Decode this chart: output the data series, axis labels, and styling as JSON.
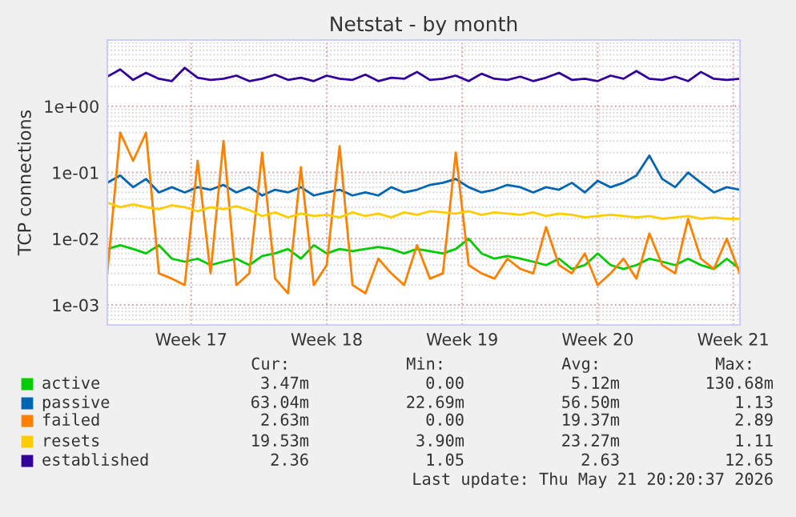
{
  "chart_data": {
    "type": "line",
    "title": "Netstat - by month",
    "ylabel": "TCP connections",
    "x": [
      "2026-04-19T04:00",
      "2026-04-19T20:00",
      "2026-04-20T12:00",
      "2026-04-21T04:00",
      "2026-04-21T20:00",
      "2026-04-22T12:00",
      "2026-04-23T04:00",
      "2026-04-23T20:00",
      "2026-04-24T12:00",
      "2026-04-25T04:00",
      "2026-04-25T20:00",
      "2026-04-26T12:00",
      "2026-04-27T04:00",
      "2026-04-27T20:00",
      "2026-04-28T12:00",
      "2026-04-29T04:00",
      "2026-04-29T20:00",
      "2026-04-30T12:00",
      "2026-05-01T04:00",
      "2026-05-01T20:00",
      "2026-05-02T12:00",
      "2026-05-03T04:00",
      "2026-05-03T20:00",
      "2026-05-04T12:00",
      "2026-05-05T04:00",
      "2026-05-05T20:00",
      "2026-05-06T12:00",
      "2026-05-07T04:00",
      "2026-05-07T20:00",
      "2026-05-08T12:00",
      "2026-05-09T04:00",
      "2026-05-09T20:00",
      "2026-05-10T12:00",
      "2026-05-11T04:00",
      "2026-05-11T20:00",
      "2026-05-12T12:00",
      "2026-05-13T04:00",
      "2026-05-13T20:00",
      "2026-05-14T12:00",
      "2026-05-15T04:00",
      "2026-05-15T20:00",
      "2026-05-16T12:00",
      "2026-05-17T04:00",
      "2026-05-17T20:00",
      "2026-05-18T12:00",
      "2026-05-19T04:00",
      "2026-05-19T20:00",
      "2026-05-20T12:00",
      "2026-05-21T04:00",
      "2026-05-21T20:00"
    ],
    "series": [
      {
        "name": "active",
        "color": "#00cc00",
        "values": [
          0.007,
          0.008,
          0.007,
          0.006,
          0.008,
          0.005,
          0.0045,
          0.005,
          0.004,
          0.0045,
          0.005,
          0.004,
          0.0055,
          0.006,
          0.007,
          0.005,
          0.008,
          0.006,
          0.007,
          0.0065,
          0.007,
          0.0075,
          0.007,
          0.006,
          0.007,
          0.0065,
          0.006,
          0.007,
          0.01,
          0.006,
          0.005,
          0.0055,
          0.005,
          0.0045,
          0.004,
          0.005,
          0.0035,
          0.004,
          0.006,
          0.004,
          0.0035,
          0.004,
          0.005,
          0.0045,
          0.004,
          0.005,
          0.004,
          0.0035,
          0.005,
          0.0035
        ]
      },
      {
        "name": "passive",
        "color": "#0066b3",
        "values": [
          0.07,
          0.09,
          0.06,
          0.08,
          0.05,
          0.06,
          0.05,
          0.06,
          0.055,
          0.065,
          0.05,
          0.06,
          0.045,
          0.055,
          0.05,
          0.06,
          0.045,
          0.05,
          0.055,
          0.045,
          0.05,
          0.045,
          0.06,
          0.05,
          0.055,
          0.065,
          0.07,
          0.08,
          0.06,
          0.05,
          0.055,
          0.065,
          0.06,
          0.05,
          0.06,
          0.055,
          0.07,
          0.05,
          0.075,
          0.06,
          0.07,
          0.09,
          0.18,
          0.08,
          0.06,
          0.1,
          0.07,
          0.05,
          0.06,
          0.055
        ]
      },
      {
        "name": "failed",
        "color": "#ff8000",
        "values": [
          0.003,
          0.4,
          0.15,
          0.4,
          0.003,
          0.0025,
          0.002,
          0.15,
          0.003,
          0.3,
          0.002,
          0.003,
          0.2,
          0.0025,
          0.0015,
          0.12,
          0.002,
          0.004,
          0.25,
          0.002,
          0.0015,
          0.005,
          0.003,
          0.002,
          0.008,
          0.0025,
          0.003,
          0.2,
          0.004,
          0.003,
          0.0025,
          0.005,
          0.0035,
          0.003,
          0.015,
          0.004,
          0.003,
          0.006,
          0.002,
          0.003,
          0.005,
          0.0025,
          0.012,
          0.004,
          0.003,
          0.02,
          0.005,
          0.0035,
          0.01,
          0.003
        ]
      },
      {
        "name": "resets",
        "color": "#ffcc00",
        "values": [
          0.035,
          0.03,
          0.033,
          0.03,
          0.028,
          0.032,
          0.03,
          0.026,
          0.03,
          0.028,
          0.031,
          0.027,
          0.022,
          0.025,
          0.021,
          0.024,
          0.022,
          0.023,
          0.021,
          0.025,
          0.022,
          0.024,
          0.021,
          0.025,
          0.023,
          0.026,
          0.025,
          0.024,
          0.026,
          0.023,
          0.025,
          0.024,
          0.023,
          0.025,
          0.022,
          0.024,
          0.023,
          0.021,
          0.022,
          0.023,
          0.022,
          0.021,
          0.022,
          0.02,
          0.021,
          0.022,
          0.02,
          0.021,
          0.02,
          0.02
        ]
      },
      {
        "name": "established",
        "color": "#330099",
        "values": [
          2.8,
          3.6,
          2.5,
          3.2,
          2.6,
          2.4,
          3.8,
          2.7,
          2.5,
          2.6,
          2.9,
          2.4,
          2.6,
          3.0,
          2.5,
          2.7,
          2.4,
          2.9,
          2.6,
          2.5,
          3.0,
          2.4,
          2.7,
          2.6,
          3.3,
          2.5,
          2.6,
          2.9,
          2.4,
          3.1,
          2.6,
          2.5,
          2.8,
          2.4,
          2.7,
          3.2,
          2.5,
          2.6,
          2.4,
          2.9,
          2.6,
          3.4,
          2.6,
          2.5,
          2.8,
          2.4,
          3.3,
          2.6,
          2.5,
          2.6
        ]
      }
    ],
    "log": "y",
    "xlim": [
      "2026-04-19T04:00",
      "2026-05-21T20:20"
    ],
    "ylim": [
      0.0005,
      10
    ],
    "xticks": [
      {
        "value": "2026-04-23T12:00",
        "label": "Week 17"
      },
      {
        "value": "2026-04-30T12:00",
        "label": "Week 18"
      },
      {
        "value": "2026-05-07T12:00",
        "label": "Week 19"
      },
      {
        "value": "2026-05-14T12:00",
        "label": "Week 20"
      },
      {
        "value": "2026-05-21T12:00",
        "label": "Week 21"
      }
    ],
    "yticks": [
      {
        "value": 0.001,
        "label": "1e-03"
      },
      {
        "value": 0.01,
        "label": "1e-02"
      },
      {
        "value": 0.1,
        "label": "1e-01"
      },
      {
        "value": 1,
        "label": "1e+00"
      }
    ],
    "grid": true,
    "legend": "bottom",
    "marker": "none",
    "line_style": "solid",
    "annotations": [
      "Cur:",
      "Min:",
      "Avg:",
      "Max:",
      "3.47m",
      "0.00",
      "5.12m",
      "130.68m",
      "63.04m",
      "22.69m",
      "56.50m",
      "1.13",
      "2.63m",
      "0.00",
      "19.37m",
      "2.89",
      "19.53m",
      "3.90m",
      "23.27m",
      "1.11",
      "2.36",
      "1.05",
      "2.63",
      "12.65",
      "Last update: Thu May 21 20:20:37 2026"
    ]
  }
}
